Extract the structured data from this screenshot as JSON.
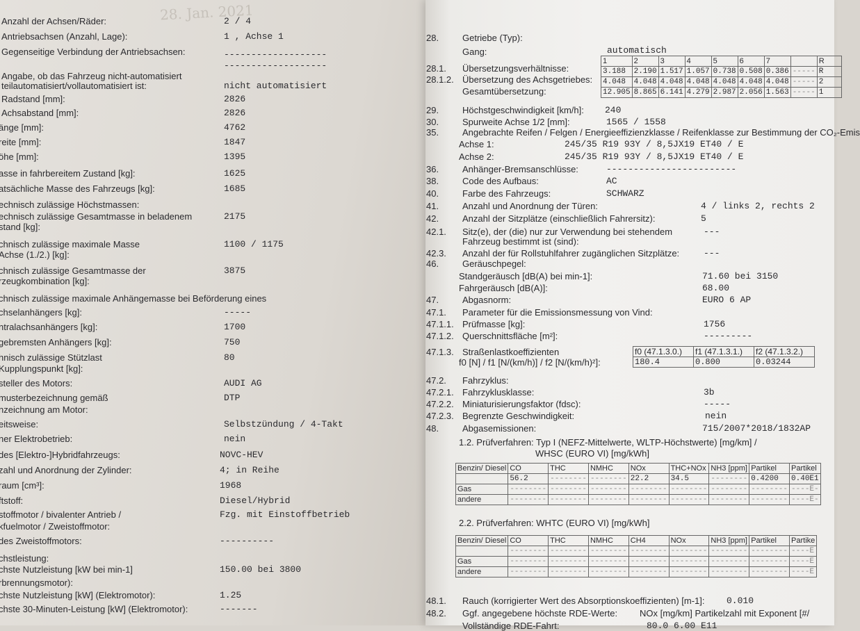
{
  "stamp": "28. Jan. 2021",
  "left": [
    {
      "label": "Anzahl der Achsen/Räder:",
      "value": "2 / 4"
    },
    {
      "label": "Antriebsachsen (Anzahl, Lage):",
      "value": "1 , Achse 1"
    },
    {
      "label": "Gegenseitige Verbindung der Antriebsachsen:",
      "value": "-------------------"
    },
    {
      "label": "",
      "value": "-------------------"
    },
    {
      "label": "Angabe, ob das Fahrzeug nicht-automatisiert",
      "value": ""
    },
    {
      "label": "teilautomatisiert/vollautomatisiert ist:",
      "value": "nicht automatisiert"
    },
    {
      "label": "Radstand [mm]:",
      "value": "2826"
    },
    {
      "label": "Achsabstand [mm]:",
      "value": "2826"
    },
    {
      "label": "änge [mm]:",
      "value": "4762"
    },
    {
      "label": "reite [mm]:",
      "value": "1847"
    },
    {
      "label": "öhe [mm]:",
      "value": "1395"
    },
    {
      "label": "asse in fahrbereitem Zustand [kg]:",
      "value": "1625"
    },
    {
      "label": "atsächliche Masse des Fahrzeugs [kg]:",
      "value": "1685"
    },
    {
      "label": "echnisch zulässige Höchstmassen:",
      "value": ""
    },
    {
      "label": "echnisch zulässige Gesamtmasse in beladenem",
      "value": "2175"
    },
    {
      "label": "stand [kg]:",
      "value": ""
    },
    {
      "label": "chnisch zulässige maximale Masse",
      "value": "1100  / 1175"
    },
    {
      "label": "Achse (1./2.) [kg]:",
      "value": ""
    },
    {
      "label": "chnisch zulässige Gesamtmasse der",
      "value": "3875"
    },
    {
      "label": "rzeugkombination [kg]:",
      "value": ""
    },
    {
      "label": "chnisch zulässige maximale Anhängemasse bei Beförderung eines",
      "value": ""
    },
    {
      "label": "chselanhängers [kg]:",
      "value": "-----"
    },
    {
      "label": "ntralachsanhängers [kg]:",
      "value": "1700"
    },
    {
      "label": "gebremsten Anhängers [kg]:",
      "value": "750"
    },
    {
      "label": "hnisch zulässige Stützlast",
      "value": "80"
    },
    {
      "label": "Kupplungspunkt [kg]:",
      "value": ""
    },
    {
      "label": "steller des Motors:",
      "value": "AUDI AG"
    },
    {
      "label": "musterbezeichnung gemäß",
      "value": "DTP"
    },
    {
      "label": "nzeichnung am Motor:",
      "value": ""
    },
    {
      "label": "eitsweise:",
      "value": "Selbstzündung / 4-Takt"
    },
    {
      "label": "ner Elektrobetrieb:",
      "value": "nein"
    },
    {
      "label": "des [Elektro-]Hybridfahrzeugs:",
      "value": "NOVC-HEV"
    },
    {
      "label": "zahl und Anordnung der Zylinder:",
      "value": "4; in Reihe"
    },
    {
      "label": "raum [cm³]:",
      "value": "1968"
    },
    {
      "label": "ftstoff:",
      "value": "Diesel/Hybrid"
    },
    {
      "label": "stoffmotor / bivalenter Antrieb /",
      "value": "Fzg. mit Einstoffbetrieb"
    },
    {
      "label": "kfuelmotor / Zweistoffmotor:",
      "value": ""
    },
    {
      "label": "des Zweistoffmotors:",
      "value": "----------"
    },
    {
      "label": "chstleistung:",
      "value": ""
    },
    {
      "label": "chste Nutzleistung [kW bei min-1]",
      "value": "150.00  bei 3800"
    },
    {
      "label": "rbrennungsmotor):",
      "value": ""
    },
    {
      "label": "chste Nutzleistung [kW] (Elektromotor):",
      "value": "1.25"
    },
    {
      "label": "chste 30-Minuten-Leistung [kW] (Elektromotor):",
      "value": "-------"
    }
  ],
  "right": [
    {
      "num": "28.",
      "label": "Getriebe (Typ):",
      "value": ""
    },
    {
      "num": "",
      "label": "",
      "value": "automatisch"
    },
    {
      "num": "",
      "label": "Gang:",
      "value": ""
    },
    {
      "num": "28.1.",
      "label": "Übersetzungsverhältnisse:",
      "value": ""
    },
    {
      "num": "28.1.2.",
      "label": "Übersetzung des Achsgetriebes:",
      "value": ""
    },
    {
      "num": "",
      "label": "Gesamtübersetzung:",
      "value": ""
    },
    {
      "num": "29.",
      "label": "Höchstgeschwindigkeit [km/h]:",
      "value": "240"
    },
    {
      "num": "30.",
      "label": "Spurweite Achse 1/2 [mm]:",
      "value": "1565  / 1558"
    },
    {
      "num": "35.",
      "label": "Angebrachte Reifen / Felgen / Energieeffizienzklasse / Reifenklasse zur Bestimmung der CO₂-Emis",
      "value": ""
    },
    {
      "num": "",
      "label": "Achse 1:",
      "value": "245/35 R19 93Y            / 8,5JX19 ET40             / E"
    },
    {
      "num": "",
      "label": "Achse 2:",
      "value": "245/35 R19 93Y            / 8,5JX19 ET40             / E"
    },
    {
      "num": "36.",
      "label": "Anhänger-Bremsanschlüsse:",
      "value": "------------------------"
    },
    {
      "num": "38.",
      "label": "Code des Aufbaus:",
      "value": "AC"
    },
    {
      "num": "40.",
      "label": "Farbe des Fahrzeugs:",
      "value": "SCHWARZ"
    },
    {
      "num": "41.",
      "label": "Anzahl und Anordnung der Türen:",
      "value": "4   / links 2, rechts 2"
    },
    {
      "num": "42.",
      "label": "Anzahl der Sitzplätze (einschließlich Fahrersitz):",
      "value": "5"
    },
    {
      "num": "42.1.",
      "label": "Sitz(e), der (die) nur zur Verwendung bei stehendem",
      "value": "---"
    },
    {
      "num": "",
      "label": "Fahrzeug bestimmt ist (sind):",
      "value": ""
    },
    {
      "num": "42.3.",
      "label": "Anzahl der für Rollstuhlfahrer zugänglichen Sitzplätze:",
      "value": "---"
    },
    {
      "num": "46.",
      "label": "Geräuschpegel:",
      "value": ""
    },
    {
      "num": "",
      "label": "Standgeräusch [dB(A) bei min-1]:",
      "value": "71.60   bei 3150"
    },
    {
      "num": "",
      "label": "Fahrgeräusch [dB(A)]:",
      "value": "68.00"
    },
    {
      "num": "47.",
      "label": "Abgasnorm:",
      "value": "EURO 6 AP"
    },
    {
      "num": "47.1.",
      "label": "Parameter für die Emissionsmessung von Vind:",
      "value": ""
    },
    {
      "num": "47.1.1.",
      "label": "Prüfmasse [kg]:",
      "value": "1756"
    },
    {
      "num": "47.1.2.",
      "label": "Querschnittsfläche [m²]:",
      "value": "---------"
    },
    {
      "num": "47.1.3.",
      "label": "Straßenlastkoeffizienten",
      "value": ""
    },
    {
      "num": "",
      "label": "f0 [N] / f1 [N/(km/h)] / f2 [N/(km/h)²]:",
      "value": ""
    },
    {
      "num": "47.2.",
      "label": "Fahrzyklus:",
      "value": ""
    },
    {
      "num": "47.2.1.",
      "label": "Fahrzyklusklasse:",
      "value": "3b"
    },
    {
      "num": "47.2.2.",
      "label": "Miniaturisierungsfaktor (fdsc):",
      "value": "-----"
    },
    {
      "num": "47.2.3.",
      "label": "Begrenzte Geschwindigkeit:",
      "value": "nein"
    },
    {
      "num": "48.",
      "label": "Abgasemissionen:",
      "value": "715/2007*2018/1832AP"
    },
    {
      "num": "",
      "label": "1.2. Prüfverfahren: Typ I (NEFZ-Mittelwerte, WLTP-Höchstwerte) [mg/km] /",
      "value": ""
    },
    {
      "num": "",
      "label": "WHSC (EURO VI) [mg/kWh]",
      "value": ""
    },
    {
      "num": "",
      "label": "2.2. Prüfverfahren: WHTC (EURO VI) [mg/kWh]",
      "value": ""
    },
    {
      "num": "48.1.",
      "label": "Rauch (korrigierter Wert des Absorptionskoeffizienten) [m-1]:",
      "value": "0.010"
    },
    {
      "num": "48.2.",
      "label": "Ggf. angegebene höchste RDE-Werte:",
      "value": "NOx [mg/km]      Partikelzahl mit Exponent [#/"
    },
    {
      "num": "",
      "label": "Vollständige RDE-Fahrt:",
      "value": "80.0              6.00 E11"
    }
  ],
  "gear_table": [
    [
      "1",
      "2",
      "3",
      "4",
      "5",
      "6",
      "7",
      "",
      "R"
    ],
    [
      "3.188",
      "2.190",
      "1.517",
      "1.057",
      "0.738",
      "0.508",
      "0.386",
      "-----",
      "R"
    ],
    [
      "4.048",
      "4.048",
      "4.048",
      "4.048",
      "4.048",
      "4.048",
      "4.048",
      "-----",
      "2"
    ],
    [
      "12.905",
      "8.865",
      "6.141",
      "4.279",
      "2.987",
      "2.056",
      "1.563",
      "-----",
      "1"
    ]
  ],
  "road_table": {
    "headers": [
      "f0 (47.1.3.0.)",
      "f1 (47.1.3.1.)",
      "f2 (47.1.3.2.)"
    ],
    "values": [
      "180.4",
      "0.800",
      "0.03244"
    ]
  },
  "emission_table_1": {
    "headers": [
      "Benzin/ Diesel",
      "CO",
      "THC",
      "NMHC",
      "NOx",
      "THC+NOx",
      "NH3 [ppm]",
      "Partikel",
      "Partikel"
    ],
    "rows": [
      [
        "",
        "56.2",
        "--------",
        "--------",
        "22.2",
        "34.5",
        "--------",
        "0.4200",
        "0.40E1"
      ],
      [
        "Gas",
        "--------",
        "--------",
        "--------",
        "--------",
        "--------",
        "--------",
        "--------",
        "----E-"
      ],
      [
        "andere",
        "--------",
        "--------",
        "--------",
        "--------",
        "--------",
        "--------",
        "--------",
        "----E-"
      ]
    ]
  },
  "emission_table_2": {
    "headers": [
      "Benzin/ Diesel",
      "CO",
      "THC",
      "NMHC",
      "CH4",
      "NOx",
      "NH3 [ppm]",
      "Partikel",
      "Partike"
    ],
    "rows": [
      [
        "",
        "--------",
        "--------",
        "--------",
        "--------",
        "--------",
        "--------",
        "--------",
        "----E"
      ],
      [
        "Gas",
        "--------",
        "--------",
        "--------",
        "--------",
        "--------",
        "--------",
        "--------",
        "----E"
      ],
      [
        "andere",
        "--------",
        "--------",
        "--------",
        "--------",
        "--------",
        "--------",
        "--------",
        "----E"
      ]
    ]
  }
}
